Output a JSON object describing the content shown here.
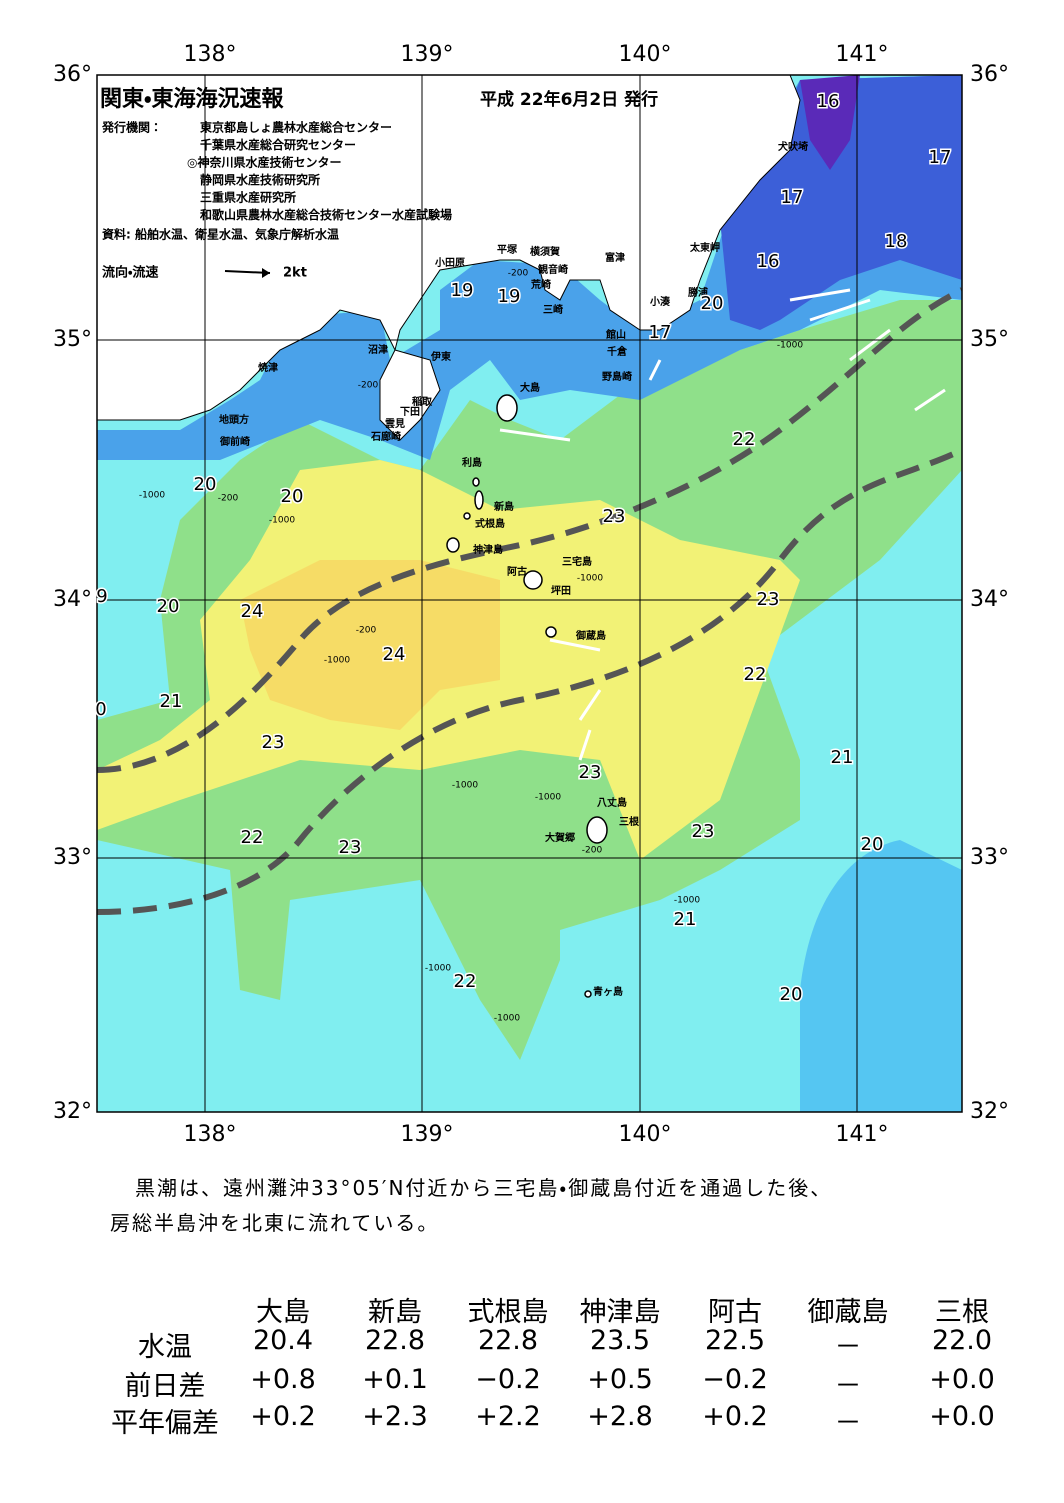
{
  "header": {
    "title": "関東・東海海況速報",
    "date": "平成 22年6月2日 発行",
    "issuer_label": "発行機関：",
    "issuers": [
      "東京都島しょ農林水産総合センター",
      "千葉県水産総合研究センター",
      "◎神奈川県水産技術センター",
      "静岡県水産技術研究所",
      "三重県水産研究所",
      "和歌山県農林水産総合技術センター水産試験場"
    ],
    "source": "資料: 船舶水温、衛星水温、気象庁解析水温",
    "legend_label": "流向・流速",
    "legend_scale": "2kt"
  },
  "map": {
    "lon_labels": [
      "138°",
      "139°",
      "140°",
      "141°"
    ],
    "lat_labels": [
      "36°",
      "35°",
      "34°",
      "33°",
      "32°"
    ],
    "places": [
      "犬吠埼",
      "太東岬",
      "勝浦",
      "小湊",
      "館山",
      "千倉",
      "野島崎",
      "富津",
      "観音崎",
      "横須賀",
      "荒崎",
      "三崎",
      "平塚",
      "小田原",
      "沼津",
      "伊東",
      "焼津",
      "稲取",
      "下田",
      "雲見",
      "石廊崎",
      "地頭方",
      "御前崎",
      "大島",
      "利島",
      "新島",
      "式根島",
      "神津島",
      "三宅島",
      "阿古",
      "坪田",
      "御蔵島",
      "八丈島",
      "三根",
      "大賀郷",
      "青ヶ島"
    ],
    "temperature_labels": [
      "16",
      "17",
      "17",
      "18",
      "16",
      "19",
      "19",
      "20",
      "17",
      "22",
      "20",
      "20",
      "23",
      "20",
      "24",
      "24",
      "23",
      "22",
      "21",
      "23",
      "23",
      "21",
      "22",
      "23",
      "23",
      "20",
      "21",
      "22",
      "20",
      "9",
      "0"
    ],
    "depth_labels": [
      "-200",
      "-1000",
      "-200",
      "-1000",
      "-200",
      "-1000",
      "-200",
      "-1000",
      "-1000",
      "-1000",
      "-1000",
      "-200",
      "-1000",
      "-1000",
      "-1000"
    ]
  },
  "summary": [
    "黒潮は、遠州灘沖33°05′N付近から三宅島・御蔵島付近を通過した後、",
    "房総半島沖を北東に流れている。"
  ],
  "table": {
    "columns": [
      "大島",
      "新島",
      "式根島",
      "神津島",
      "阿古",
      "御蔵島",
      "三根"
    ],
    "rows": [
      [
        "水温",
        "20.4",
        "22.8",
        "22.8",
        "23.5",
        "22.5",
        "－",
        "22.0"
      ],
      [
        "前日差",
        "+0.8",
        "+0.1",
        "−0.2",
        "+0.5",
        "−0.2",
        "－",
        "+0.0"
      ],
      [
        "平年偏差",
        "+0.2",
        "+2.3",
        "+2.2",
        "+2.8",
        "+0.2",
        "－",
        "+0.0"
      ]
    ]
  }
}
